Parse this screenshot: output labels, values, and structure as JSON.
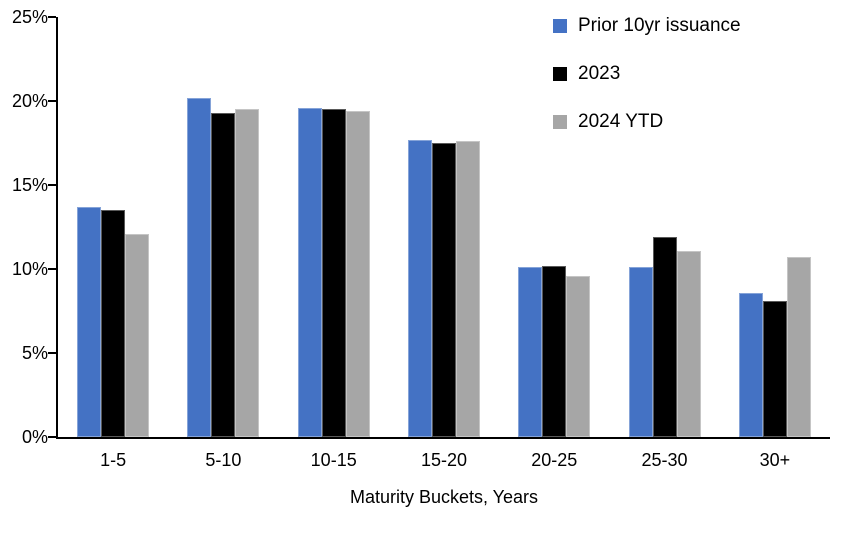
{
  "chart_data": {
    "type": "bar",
    "title": "",
    "categories": [
      "1-5",
      "5-10",
      "10-15",
      "15-20",
      "20-25",
      "25-30",
      "30+"
    ],
    "series": [
      {
        "name": "Prior 10yr issuance",
        "color": "#4472C4",
        "values": [
          13.7,
          20.2,
          19.6,
          17.7,
          10.1,
          10.1,
          8.6
        ]
      },
      {
        "name": "2023",
        "color": "#000000",
        "values": [
          13.5,
          19.3,
          19.5,
          17.5,
          10.2,
          11.9,
          8.1
        ]
      },
      {
        "name": "2024 YTD",
        "color": "#A6A6A6",
        "values": [
          12.1,
          19.5,
          19.4,
          17.6,
          9.6,
          11.1,
          10.7
        ]
      }
    ],
    "xlabel": "Maturity Buckets, Years",
    "ylabel": "",
    "ylim": [
      0,
      25
    ],
    "ytick_step": 5,
    "ytick_labels": [
      "0%",
      "5%",
      "10%",
      "15%",
      "20%",
      "25%"
    ],
    "grid": false,
    "legend_position": "top-right",
    "axis_color": "#000000",
    "background_color": "#FFFFFF"
  }
}
